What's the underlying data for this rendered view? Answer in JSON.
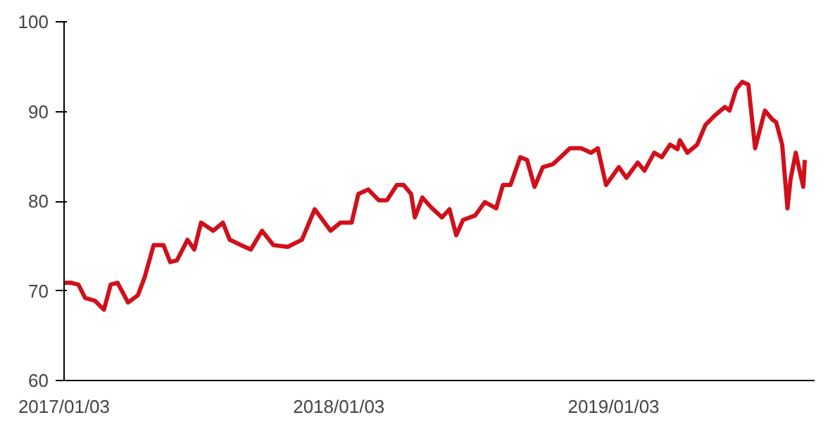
{
  "chart_data": {
    "type": "line",
    "x": [
      "2017-01-03",
      "2017-01-12",
      "2017-01-22",
      "2017-01-31",
      "2017-02-13",
      "2017-02-25",
      "2017-03-06",
      "2017-03-15",
      "2017-03-29",
      "2017-04-11",
      "2017-04-20",
      "2017-05-02",
      "2017-05-15",
      "2017-05-24",
      "2017-06-02",
      "2017-06-16",
      "2017-06-25",
      "2017-07-04",
      "2017-07-20",
      "2017-08-02",
      "2017-08-11",
      "2017-08-26",
      "2017-09-08",
      "2017-09-23",
      "2017-10-08",
      "2017-10-27",
      "2017-11-15",
      "2017-12-02",
      "2017-12-23",
      "2018-01-05",
      "2018-01-20",
      "2018-01-29",
      "2018-02-11",
      "2018-02-25",
      "2018-03-08",
      "2018-03-21",
      "2018-03-30",
      "2018-04-09",
      "2018-04-14",
      "2018-04-24",
      "2018-05-07",
      "2018-05-20",
      "2018-05-30",
      "2018-06-08",
      "2018-06-17",
      "2018-07-03",
      "2018-07-16",
      "2018-07-31",
      "2018-08-09",
      "2018-08-19",
      "2018-09-01",
      "2018-09-10",
      "2018-09-20",
      "2018-10-01",
      "2018-10-14",
      "2018-10-27",
      "2018-11-06",
      "2018-11-21",
      "2018-12-04",
      "2018-12-13",
      "2018-12-24",
      "2019-01-10",
      "2019-01-20",
      "2019-02-04",
      "2019-02-13",
      "2019-02-26",
      "2019-03-08",
      "2019-03-19",
      "2019-03-29",
      "2019-04-01",
      "2019-04-11",
      "2019-04-24",
      "2019-05-05",
      "2019-05-18",
      "2019-05-31",
      "2019-06-06",
      "2019-06-15",
      "2019-06-23",
      "2019-07-01",
      "2019-07-10",
      "2019-07-23",
      "2019-08-02",
      "2019-08-07",
      "2019-08-15",
      "2019-08-22",
      "2019-08-26",
      "2019-09-02",
      "2019-09-06",
      "2019-09-12",
      "2019-09-14"
    ],
    "series": [
      {
        "color": "#d0101b",
        "values": [
          70.9,
          70.9,
          70.7,
          69.2,
          68.9,
          67.9,
          70.7,
          70.9,
          68.7,
          69.5,
          71.5,
          75.1,
          75.1,
          73.2,
          73.4,
          75.7,
          74.6,
          77.6,
          76.7,
          77.6,
          75.7,
          75.1,
          74.6,
          76.7,
          75.1,
          74.9,
          75.7,
          79.1,
          76.7,
          77.6,
          77.6,
          80.8,
          81.3,
          80.1,
          80.1,
          81.8,
          81.8,
          80.8,
          78.2,
          80.4,
          79.2,
          78.2,
          79.1,
          76.2,
          77.9,
          78.4,
          79.9,
          79.2,
          81.8,
          81.8,
          84.9,
          84.6,
          81.6,
          83.8,
          84.1,
          85.1,
          85.9,
          85.9,
          85.4,
          85.9,
          81.8,
          83.8,
          82.6,
          84.3,
          83.4,
          85.4,
          84.9,
          86.3,
          85.8,
          86.8,
          85.4,
          86.3,
          88.5,
          89.6,
          90.5,
          90.1,
          92.5,
          93.3,
          93.0,
          85.9,
          90.1,
          89.1,
          88.8,
          86.3,
          79.2,
          82.4,
          85.4,
          83.8,
          81.6,
          84.6
        ]
      }
    ],
    "xlim": [
      "2017-01-03",
      "2019-09-27"
    ],
    "xticks": [
      {
        "value": "2017-01-03",
        "label": "2017/01/03"
      },
      {
        "value": "2018-01-03",
        "label": "2018/01/03"
      },
      {
        "value": "2019-01-03",
        "label": "2019/01/03"
      }
    ],
    "ylim": [
      60,
      100
    ],
    "yticks": [
      60,
      70,
      80,
      90,
      100
    ],
    "grid": false,
    "marker": "none",
    "line_style": "solid"
  }
}
